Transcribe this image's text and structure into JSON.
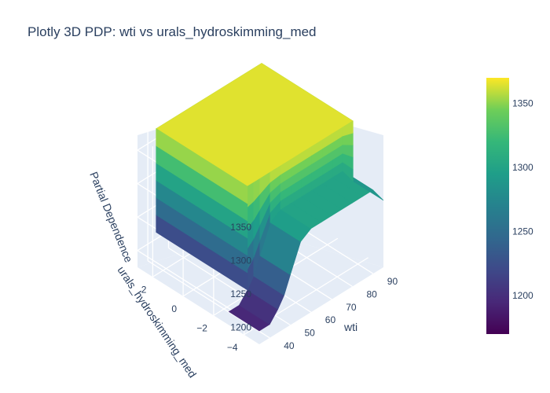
{
  "chart_data": {
    "type": "surface",
    "title": "Plotly 3D PDP: wti vs urals_hydroskimming_med",
    "x_axis": {
      "label": "wti",
      "ticks": [
        "40",
        "50",
        "60",
        "70",
        "80",
        "90"
      ],
      "range": [
        35,
        95
      ]
    },
    "y_axis": {
      "label": "urals_hydroskimming_med",
      "ticks": [
        "−4",
        "−2",
        "0",
        "2"
      ],
      "range": [
        -5,
        3
      ]
    },
    "z_axis": {
      "label": "Partial Dependence",
      "ticks": [
        "1200",
        "1250",
        "1300",
        "1350"
      ],
      "range": [
        1175,
        1370
      ]
    },
    "colorbar": {
      "colorscale": "Viridis",
      "ticks": [
        "1200",
        "1250",
        "1300",
        "1350"
      ],
      "range": [
        1170,
        1370
      ]
    },
    "grid": true,
    "surface_summary": {
      "x": [
        35,
        40,
        44,
        47,
        50,
        55,
        60,
        65,
        70,
        75,
        80,
        85,
        90,
        95
      ],
      "low_level_by_x": [
        1195,
        1195,
        1210,
        1225,
        1250,
        1290,
        1300,
        1300,
        1300,
        1300,
        1300,
        1300,
        1300,
        1275
      ],
      "plateau_value": 1365,
      "plateau_y_range": [
        -3,
        3
      ],
      "y_at_low_edge": -5
    }
  },
  "colors": {
    "background": "#ffffff",
    "scene_panel": "#e5ecf6",
    "grid": "#ffffff",
    "text": "#2a3f5f"
  }
}
